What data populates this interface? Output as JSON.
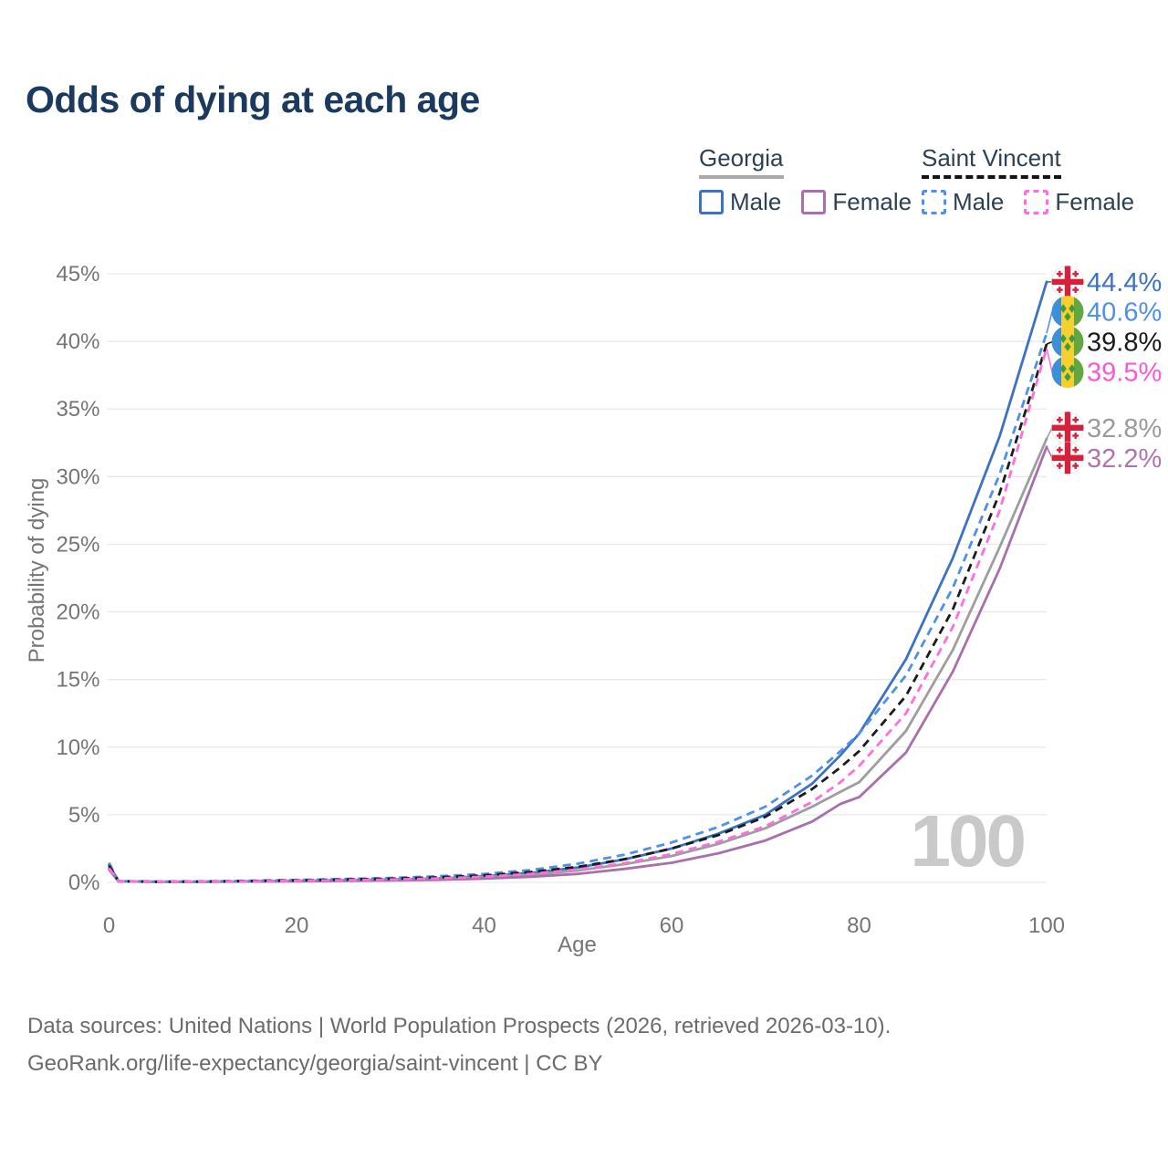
{
  "title": "Odds of dying at each age",
  "legend": {
    "groups": [
      {
        "label": "Georgia",
        "underline_color": "#a9a9a9",
        "underline_style": "solid",
        "items": [
          {
            "label": "Male",
            "color": "#3c72c1",
            "dashed": false
          },
          {
            "label": "Female",
            "color": "#a96fad",
            "dashed": false
          }
        ]
      },
      {
        "label": "Saint Vincent",
        "underline_color": "#141414",
        "underline_style": "dashed",
        "items": [
          {
            "label": "Male",
            "color": "#4f90ea",
            "dashed": true
          },
          {
            "label": "Female",
            "color": "#ff6ede",
            "dashed": true
          }
        ]
      }
    ]
  },
  "chart_data": {
    "type": "line",
    "title": "Odds of dying at each age",
    "xlabel": "Age",
    "ylabel": "Probability of dying",
    "xlim": [
      0,
      100
    ],
    "ylim": [
      0,
      45
    ],
    "xticks": [
      0,
      20,
      40,
      60,
      80,
      100
    ],
    "yticks": [
      0,
      5,
      10,
      15,
      20,
      25,
      30,
      35,
      40,
      45
    ],
    "ytick_suffix": "%",
    "grid": "horizontal",
    "legend_position": "top-right",
    "watermark": "100",
    "x": [
      0,
      1,
      5,
      10,
      15,
      20,
      25,
      30,
      35,
      40,
      45,
      50,
      55,
      60,
      65,
      70,
      75,
      78,
      80,
      85,
      90,
      95,
      100
    ],
    "series": [
      {
        "name": "Georgia Male",
        "country": "Georgia",
        "sex": "Male",
        "flag": "georgia",
        "color": "#3c72c1",
        "label_color": "#3c72c1",
        "dashed": false,
        "end_label": "44.4%",
        "values": [
          1.3,
          0.09,
          0.05,
          0.05,
          0.08,
          0.13,
          0.17,
          0.22,
          0.3,
          0.45,
          0.7,
          1.1,
          1.7,
          2.5,
          3.6,
          5.0,
          7.3,
          9.4,
          11.0,
          16.5,
          24.0,
          33.0,
          44.4
        ]
      },
      {
        "name": "Saint Vincent Male",
        "country": "Saint Vincent",
        "sex": "Male",
        "flag": "saint-vincent",
        "color": "#4f90ea",
        "label_color": "#4f90ea",
        "dashed": true,
        "end_label": "40.6%",
        "values": [
          1.45,
          0.1,
          0.06,
          0.07,
          0.12,
          0.18,
          0.25,
          0.33,
          0.45,
          0.62,
          0.92,
          1.38,
          2.05,
          2.95,
          4.1,
          5.6,
          7.9,
          9.7,
          11.0,
          15.3,
          21.8,
          30.2,
          40.6
        ]
      },
      {
        "name": "Saint Vincent Total",
        "country": "Saint Vincent",
        "sex": "Total",
        "flag": "saint-vincent",
        "color": "#1b1b1b",
        "label_color": "#1b1b1b",
        "dashed": true,
        "end_label": "39.8%",
        "values": [
          1.25,
          0.09,
          0.05,
          0.06,
          0.1,
          0.15,
          0.21,
          0.27,
          0.37,
          0.52,
          0.77,
          1.15,
          1.72,
          2.5,
          3.5,
          4.85,
          6.9,
          8.5,
          9.7,
          13.8,
          20.2,
          28.8,
          39.8
        ]
      },
      {
        "name": "Saint Vincent Female",
        "country": "Saint Vincent",
        "sex": "Female",
        "flag": "saint-vincent",
        "color": "#ff6ede",
        "label_color": "#ff57d4",
        "dashed": true,
        "end_label": "39.5%",
        "values": [
          1.05,
          0.08,
          0.05,
          0.05,
          0.08,
          0.12,
          0.16,
          0.21,
          0.29,
          0.42,
          0.63,
          0.95,
          1.42,
          2.1,
          3.0,
          4.15,
          5.95,
          7.4,
          8.6,
          12.5,
          18.9,
          27.5,
          39.5
        ]
      },
      {
        "name": "Georgia Total",
        "country": "Georgia",
        "sex": "Total",
        "flag": "georgia",
        "color": "#9e9e9e",
        "label_color": "#9b9b9b",
        "dashed": false,
        "end_label": "32.8%",
        "values": [
          1.05,
          0.08,
          0.04,
          0.05,
          0.07,
          0.11,
          0.14,
          0.19,
          0.26,
          0.38,
          0.57,
          0.88,
          1.35,
          1.95,
          2.85,
          4.0,
          5.6,
          6.7,
          7.4,
          11.2,
          17.2,
          24.8,
          32.8
        ]
      },
      {
        "name": "Georgia Female",
        "country": "Georgia",
        "sex": "Female",
        "flag": "georgia",
        "color": "#a96fad",
        "label_color": "#af74b0",
        "dashed": false,
        "end_label": "32.2%",
        "values": [
          0.95,
          0.07,
          0.04,
          0.04,
          0.06,
          0.08,
          0.11,
          0.14,
          0.19,
          0.28,
          0.42,
          0.63,
          1.0,
          1.45,
          2.15,
          3.1,
          4.5,
          5.8,
          6.3,
          9.6,
          15.6,
          23.2,
          32.2
        ]
      }
    ]
  },
  "colors": {
    "title": "#1c3a5e",
    "axis_text": "#757575",
    "grid": "#e9e9e9",
    "watermark": "#c9c9c9",
    "footer_text": "#6b6b6b",
    "georgia_flag_red": "#d8203a",
    "sv_flag_blue": "#3d8fd9",
    "sv_flag_yellow": "#f7cf2e",
    "sv_flag_green": "#62a744",
    "sv_flag_diamond": "#3f9b43"
  },
  "footer": {
    "line1": "Data sources: United Nations | World Population Prospects (2026, retrieved 2026-03-10).",
    "line2": "GeoRank.org/life-expectancy/georgia/saint-vincent | CC BY"
  }
}
